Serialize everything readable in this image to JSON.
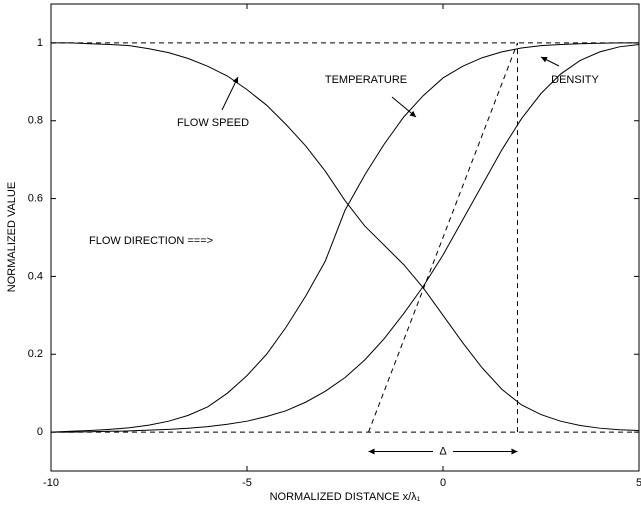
{
  "chart_data": {
    "type": "line",
    "xlabel": "NORMALIZED DISTANCE x/λ₁",
    "ylabel": "NORMALIZED VALUE",
    "x": [
      -10,
      -9.5,
      -9,
      -8.5,
      -8,
      -7.5,
      -7,
      -6.5,
      -6,
      -5.5,
      -5,
      -4.5,
      -4,
      -3.5,
      -3,
      -2.5,
      -2,
      -1.5,
      -1,
      -0.5,
      0,
      0.5,
      1,
      1.5,
      2,
      2.5,
      3,
      3.5,
      4,
      4.5,
      5
    ],
    "series": [
      {
        "name": "FLOW SPEED",
        "color": "#000000",
        "values": [
          1.0,
          1.0,
          0.998,
          0.996,
          0.993,
          0.985,
          0.975,
          0.96,
          0.94,
          0.915,
          0.88,
          0.84,
          0.79,
          0.735,
          0.67,
          0.595,
          0.53,
          0.48,
          0.43,
          0.37,
          0.3,
          0.23,
          0.165,
          0.11,
          0.07,
          0.045,
          0.028,
          0.017,
          0.01,
          0.006,
          0.004
        ]
      },
      {
        "name": "TEMPERATURE",
        "color": "#000000",
        "values": [
          0.0,
          0.002,
          0.004,
          0.007,
          0.011,
          0.018,
          0.028,
          0.043,
          0.065,
          0.1,
          0.145,
          0.2,
          0.27,
          0.35,
          0.44,
          0.57,
          0.66,
          0.74,
          0.81,
          0.865,
          0.91,
          0.94,
          0.962,
          0.977,
          0.987,
          0.993,
          0.996,
          0.998,
          0.999,
          1.0,
          1.0
        ]
      },
      {
        "name": "DENSITY",
        "color": "#000000",
        "values": [
          0.0,
          0.0,
          0.001,
          0.002,
          0.003,
          0.005,
          0.007,
          0.01,
          0.014,
          0.02,
          0.028,
          0.04,
          0.055,
          0.077,
          0.105,
          0.14,
          0.185,
          0.24,
          0.305,
          0.375,
          0.455,
          0.545,
          0.635,
          0.725,
          0.805,
          0.87,
          0.92,
          0.955,
          0.977,
          0.99,
          0.996
        ]
      }
    ],
    "reference_lines": [
      {
        "x": [
          -10,
          5
        ],
        "y": [
          1,
          1
        ]
      },
      {
        "x": [
          -10,
          5
        ],
        "y": [
          0,
          0
        ]
      },
      {
        "x": [
          -1.9,
          1.9
        ],
        "y": [
          0,
          1
        ]
      },
      {
        "x": [
          1.9,
          1.9
        ],
        "y": [
          0,
          1
        ]
      }
    ],
    "delta": {
      "label": "Δ",
      "x": [
        -1.9,
        1.9
      ],
      "y": -0.05
    },
    "annotations": [
      "FLOW DIRECTION ===>"
    ],
    "xlim": [
      -10,
      5
    ],
    "ylim": [
      -0.1,
      1.1
    ],
    "xticks": [
      -10,
      -5,
      0,
      5
    ],
    "yticks": [
      0,
      0.2,
      0.4,
      0.6,
      0.8,
      1
    ],
    "grid": false,
    "legend": false
  }
}
